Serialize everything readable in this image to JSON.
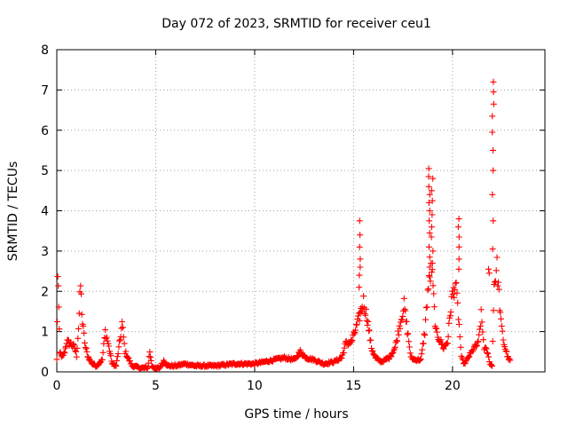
{
  "chart_data": {
    "type": "scatter",
    "title": "Day 072 of 2023, SRMTID for receiver ceu1",
    "xlabel": "GPS time / hours",
    "ylabel": "SRMTID / TECUs",
    "xlim": [
      0,
      24.67
    ],
    "ylim": [
      0,
      8
    ],
    "xticks": [
      0,
      5,
      10,
      15,
      20
    ],
    "yticks": [
      0,
      1,
      2,
      3,
      4,
      5,
      6,
      7,
      8
    ],
    "xtick_labels": [
      "0",
      "5",
      "10",
      "15",
      "20"
    ],
    "ytick_labels": [
      "0",
      "1",
      "2",
      "3",
      "4",
      "5",
      "6",
      "7",
      "8"
    ],
    "grid": true,
    "marker": "+",
    "series": [
      {
        "name": "SRMTID",
        "color": "#ff0000",
        "shape": [
          [
            0.0,
            0.3
          ],
          [
            0.05,
            2.3
          ],
          [
            0.1,
            1.55
          ],
          [
            0.15,
            0.5
          ],
          [
            0.25,
            0.35
          ],
          [
            0.4,
            0.5
          ],
          [
            0.5,
            0.75
          ],
          [
            0.7,
            0.7
          ],
          [
            0.9,
            0.6
          ],
          [
            1.0,
            0.4
          ],
          [
            1.1,
            1.1
          ],
          [
            1.2,
            2.15
          ],
          [
            1.3,
            1.2
          ],
          [
            1.45,
            0.6
          ],
          [
            1.6,
            0.35
          ],
          [
            1.8,
            0.2
          ],
          [
            2.0,
            0.15
          ],
          [
            2.3,
            0.3
          ],
          [
            2.45,
            1.0
          ],
          [
            2.6,
            0.7
          ],
          [
            2.8,
            0.2
          ],
          [
            3.0,
            0.15
          ],
          [
            3.2,
            0.8
          ],
          [
            3.3,
            1.2
          ],
          [
            3.45,
            0.5
          ],
          [
            3.6,
            0.35
          ],
          [
            3.8,
            0.15
          ],
          [
            4.2,
            0.1
          ],
          [
            4.6,
            0.1
          ],
          [
            4.7,
            0.5
          ],
          [
            4.8,
            0.15
          ],
          [
            5.0,
            0.08
          ],
          [
            5.2,
            0.1
          ],
          [
            5.4,
            0.28
          ],
          [
            5.6,
            0.15
          ],
          [
            6.0,
            0.15
          ],
          [
            6.5,
            0.2
          ],
          [
            7.0,
            0.15
          ],
          [
            8.0,
            0.15
          ],
          [
            9.0,
            0.2
          ],
          [
            10.0,
            0.2
          ],
          [
            10.5,
            0.25
          ],
          [
            11.0,
            0.3
          ],
          [
            11.5,
            0.35
          ],
          [
            12.0,
            0.3
          ],
          [
            12.3,
            0.5
          ],
          [
            12.6,
            0.35
          ],
          [
            13.0,
            0.3
          ],
          [
            13.5,
            0.2
          ],
          [
            14.0,
            0.25
          ],
          [
            14.4,
            0.35
          ],
          [
            14.6,
            0.7
          ],
          [
            14.9,
            0.75
          ],
          [
            15.2,
            1.2
          ],
          [
            15.5,
            1.75
          ],
          [
            15.7,
            1.3
          ],
          [
            15.9,
            0.6
          ],
          [
            16.1,
            0.35
          ],
          [
            16.4,
            0.25
          ],
          [
            16.8,
            0.35
          ],
          [
            17.1,
            0.6
          ],
          [
            17.35,
            1.2
          ],
          [
            17.55,
            1.65
          ],
          [
            17.75,
            0.9
          ],
          [
            17.9,
            0.35
          ],
          [
            18.1,
            0.3
          ],
          [
            18.4,
            0.3
          ],
          [
            18.6,
            1.0
          ],
          [
            18.75,
            2.0
          ],
          [
            18.95,
            2.6
          ],
          [
            19.15,
            1.0
          ],
          [
            19.35,
            0.8
          ],
          [
            19.55,
            0.6
          ],
          [
            19.75,
            0.75
          ],
          [
            19.95,
            1.8
          ],
          [
            20.15,
            2.2
          ],
          [
            20.3,
            1.4
          ],
          [
            20.45,
            0.35
          ],
          [
            20.6,
            0.2
          ],
          [
            20.85,
            0.4
          ],
          [
            21.1,
            0.6
          ],
          [
            21.3,
            0.7
          ],
          [
            21.45,
            1.4
          ],
          [
            21.6,
            0.6
          ],
          [
            21.75,
            0.5
          ],
          [
            21.9,
            0.2
          ],
          [
            22.0,
            0.15
          ],
          [
            22.1,
            2.2
          ],
          [
            22.25,
            2.6
          ],
          [
            22.45,
            1.2
          ],
          [
            22.6,
            0.7
          ],
          [
            22.8,
            0.35
          ],
          [
            22.95,
            0.25
          ]
        ],
        "spikes": [
          {
            "x": 15.3,
            "values": [
              3.75,
              3.4,
              3.1,
              2.8,
              2.6,
              2.4,
              2.1
            ]
          },
          {
            "x": 18.83,
            "values": [
              5.05,
              4.85,
              4.6,
              4.4,
              4.2,
              4.0,
              3.75,
              3.45,
              3.1,
              2.85,
              2.6
            ]
          },
          {
            "x": 18.97,
            "values": [
              4.8,
              4.5,
              4.25,
              3.9,
              3.6,
              3.35,
              3.0,
              2.7
            ]
          },
          {
            "x": 20.3,
            "values": [
              3.8,
              3.6,
              3.35,
              3.1,
              2.8,
              2.55
            ]
          },
          {
            "x": 21.82,
            "values": [
              2.55,
              2.45
            ]
          },
          {
            "x": 22.05,
            "values": [
              7.2,
              6.95,
              6.65,
              6.35,
              5.95,
              5.5,
              5.0,
              4.4,
              3.75,
              3.05
            ]
          }
        ]
      }
    ]
  }
}
